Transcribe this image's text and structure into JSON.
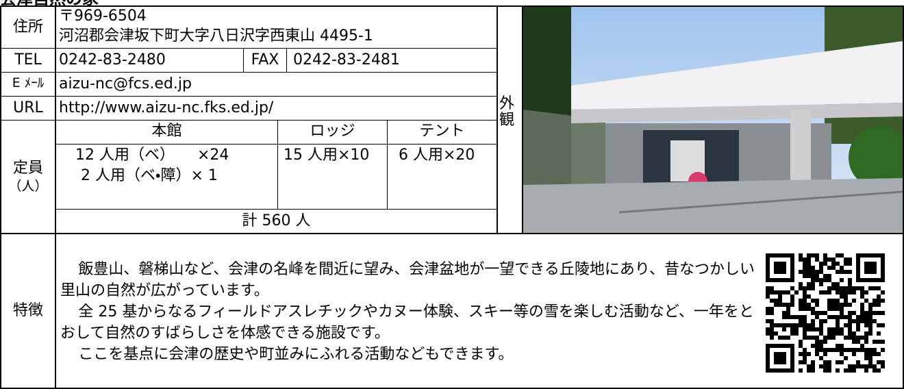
{
  "title": "会津自然の家",
  "address": {
    "label": "住所",
    "postal": "〒969-6504",
    "line": "河沼郡会津坂下町大字八日沢字西東山 4495-1"
  },
  "tel": {
    "label": "TEL",
    "value": "0242-83-2480",
    "fax_label": "FAX",
    "fax": "0242-83-2481"
  },
  "email": {
    "label": "E ﾒｰﾙ",
    "value": "aizu-nc@fcs.ed.jp"
  },
  "url": {
    "label": "URL",
    "value": "http://www.aizu-nc.fks.ed.jp/"
  },
  "capacity": {
    "label": "定員",
    "unit": "（人）",
    "columns": [
      "本館",
      "ロッジ",
      "テント"
    ],
    "main": [
      "12 人用（ベ）　　×24",
      "2 人用（ベ・障）× 1"
    ],
    "lodge": "15 人用×10",
    "tent": "6 人用×20",
    "total": "計 560 人"
  },
  "exterior_label": "外観",
  "features": {
    "label": "特徴",
    "paragraphs": [
      "飯豊山、磐梯山など、会津の名峰を間近に望み、会津盆地が一望できる丘陵地にあり、昔なつかしい里山の自然が広がっています。",
      "全 25 基からなるフィールドアスレチックやカヌー体験、スキー等の雪を楽しむ活動など、一年をとおして自然のすばらしさを体感できる施設です。",
      "ここを基点に会津の歴史や町並みにふれる活動などもできます。"
    ]
  }
}
